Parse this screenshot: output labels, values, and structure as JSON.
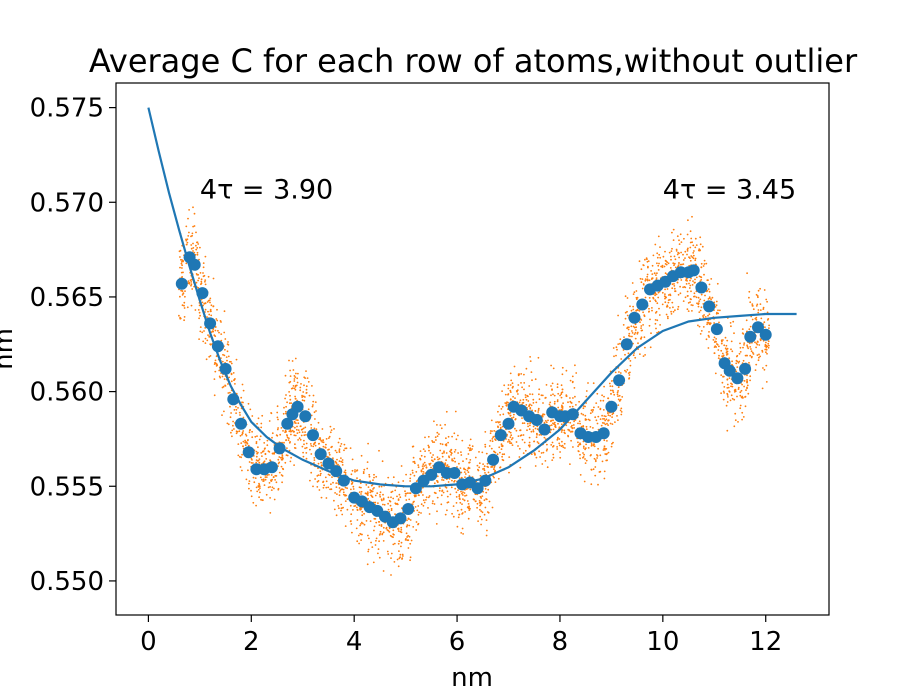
{
  "chart_data": {
    "type": "scatter",
    "title": "Average C for each row of atoms,without outlier",
    "xlabel": "nm",
    "ylabel": "nm",
    "xlim": [
      -0.63,
      13.23
    ],
    "ylim": [
      0.5482,
      0.5763
    ],
    "x_ticks": [
      0,
      2,
      4,
      6,
      8,
      10,
      12
    ],
    "y_ticks": [
      0.55,
      0.555,
      0.56,
      0.565,
      0.57,
      0.575
    ],
    "x_tick_labels": [
      "0",
      "2",
      "4",
      "6",
      "8",
      "10",
      "12"
    ],
    "y_tick_labels": [
      "0.550",
      "0.555",
      "0.560",
      "0.565",
      "0.570",
      "0.575"
    ],
    "grid": false,
    "legend": "none",
    "annotations": [
      {
        "text": "4τ = 3.90",
        "x": 1.0,
        "y": 0.5702
      },
      {
        "text": "4τ = 3.45",
        "x": 10.0,
        "y": 0.5702
      }
    ],
    "colors": {
      "mean_points": "#1f77b4",
      "fit_line": "#1f77b4",
      "raw_points": "#ff7f0e"
    },
    "mean_points": {
      "x": [
        0.65,
        0.8,
        0.9,
        1.05,
        1.2,
        1.35,
        1.5,
        1.65,
        1.8,
        1.95,
        2.1,
        2.25,
        2.4,
        2.55,
        2.7,
        2.8,
        2.9,
        3.05,
        3.2,
        3.35,
        3.5,
        3.65,
        3.8,
        4.0,
        4.15,
        4.3,
        4.45,
        4.6,
        4.75,
        4.9,
        5.05,
        5.2,
        5.35,
        5.5,
        5.65,
        5.8,
        5.95,
        6.1,
        6.25,
        6.4,
        6.55,
        6.7,
        6.85,
        7.0,
        7.1,
        7.25,
        7.4,
        7.55,
        7.7,
        7.85,
        8.0,
        8.1,
        8.25,
        8.4,
        8.55,
        8.7,
        8.85,
        9.0,
        9.15,
        9.3,
        9.45,
        9.6,
        9.75,
        9.9,
        10.05,
        10.2,
        10.35,
        10.5,
        10.6,
        10.75,
        10.9,
        11.05,
        11.2,
        11.3,
        11.45,
        11.6,
        11.7,
        11.85,
        12.0
      ],
      "y": [
        0.5657,
        0.5671,
        0.5667,
        0.5652,
        0.5636,
        0.5624,
        0.5612,
        0.5596,
        0.5583,
        0.5568,
        0.5559,
        0.5559,
        0.556,
        0.557,
        0.5583,
        0.5588,
        0.5592,
        0.5587,
        0.5577,
        0.5567,
        0.5562,
        0.5558,
        0.5553,
        0.5544,
        0.5542,
        0.5539,
        0.5537,
        0.5534,
        0.5531,
        0.5533,
        0.5538,
        0.5549,
        0.5553,
        0.5556,
        0.556,
        0.5557,
        0.5557,
        0.5551,
        0.5552,
        0.5549,
        0.5553,
        0.5564,
        0.5577,
        0.5583,
        0.5592,
        0.559,
        0.5587,
        0.5585,
        0.558,
        0.5589,
        0.5587,
        0.5587,
        0.5588,
        0.5578,
        0.5576,
        0.5576,
        0.5578,
        0.5592,
        0.5606,
        0.5625,
        0.5639,
        0.5646,
        0.5654,
        0.5656,
        0.5658,
        0.5661,
        0.5663,
        0.5663,
        0.5664,
        0.5655,
        0.5645,
        0.5633,
        0.5615,
        0.5611,
        0.5607,
        0.5612,
        0.5629,
        0.5634,
        0.563
      ]
    },
    "fit_line": {
      "x": [
        0.0,
        0.2,
        0.4,
        0.6,
        0.8,
        1.0,
        1.2,
        1.4,
        1.6,
        1.8,
        2.0,
        2.3,
        2.6,
        3.0,
        3.5,
        4.0,
        4.5,
        5.0,
        5.5,
        6.0,
        6.5,
        7.0,
        7.5,
        8.0,
        8.5,
        9.0,
        9.5,
        10.0,
        10.5,
        11.0,
        11.5,
        12.0,
        12.6
      ],
      "y": [
        0.575,
        0.5727,
        0.5705,
        0.5685,
        0.5666,
        0.5648,
        0.5631,
        0.5616,
        0.5603,
        0.5593,
        0.5584,
        0.5576,
        0.557,
        0.5564,
        0.5558,
        0.5553,
        0.5551,
        0.555,
        0.555,
        0.5551,
        0.5554,
        0.556,
        0.5569,
        0.558,
        0.5595,
        0.561,
        0.5623,
        0.5632,
        0.5637,
        0.5639,
        0.564,
        0.5641,
        0.5641
      ]
    },
    "raw_points": {
      "spread_per_row": 0.004
    }
  }
}
